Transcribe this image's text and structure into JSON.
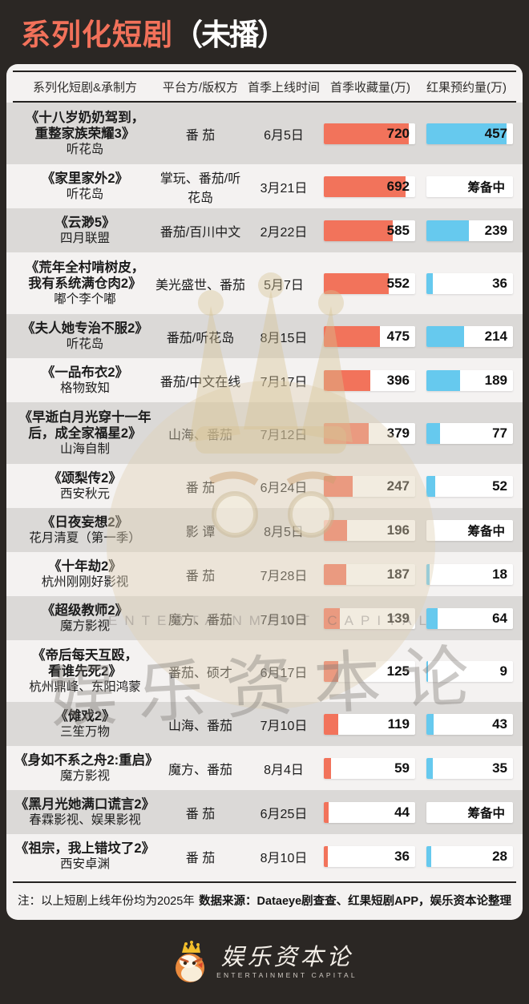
{
  "header": {
    "title_main": "系列化短剧",
    "title_suffix": "（未播）"
  },
  "table": {
    "columns": [
      "系列化短剧&承制方",
      "平台方/版权方",
      "首季上线时间",
      "首季收藏量(万)",
      "红果预约量(万)"
    ],
    "max_collection": 720,
    "max_reservation": 457,
    "pending_label": "筹备中",
    "rows": [
      {
        "title_lines": [
          "《十八岁奶奶驾到，",
          "重整家族荣耀3》"
        ],
        "producer": "听花岛",
        "platform": "番 茄",
        "date": "6月5日",
        "collection": 720,
        "reservation": 457
      },
      {
        "title_lines": [
          "《家里家外2》"
        ],
        "producer": "听花岛",
        "platform": "掌玩、番茄/听花岛",
        "date": "3月21日",
        "collection": 692,
        "reservation": "筹备中"
      },
      {
        "title_lines": [
          "《云渺5》"
        ],
        "producer": "四月联盟",
        "platform": "番茄/百川中文",
        "date": "2月22日",
        "collection": 585,
        "reservation": 239
      },
      {
        "title_lines": [
          "《荒年全村啃树皮，",
          "我有系统满仓肉2》"
        ],
        "producer": "嘟个李个嘟",
        "platform": "美光盛世、番茄",
        "date": "5月7日",
        "collection": 552,
        "reservation": 36
      },
      {
        "title_lines": [
          "《夫人她专治不服2》"
        ],
        "producer": "听花岛",
        "platform": "番茄/听花岛",
        "date": "8月15日",
        "collection": 475,
        "reservation": 214
      },
      {
        "title_lines": [
          "《一品布衣2》"
        ],
        "producer": "格物致知",
        "platform": "番茄/中文在线",
        "date": "7月17日",
        "collection": 396,
        "reservation": 189
      },
      {
        "title_lines": [
          "《早逝白月光穿十一年",
          "后，成全家福星2》"
        ],
        "producer": "山海自制",
        "platform": "山海、番茄",
        "date": "7月12日",
        "collection": 379,
        "reservation": 77
      },
      {
        "title_lines": [
          "《颂梨传2》"
        ],
        "producer": "西安秋元",
        "platform": "番 茄",
        "date": "6月24日",
        "collection": 247,
        "reservation": 52
      },
      {
        "title_lines": [
          "《日夜妄想2》"
        ],
        "producer": "花月清夏（第一季）",
        "platform": "影 谭",
        "date": "8月5日",
        "collection": 196,
        "reservation": "筹备中"
      },
      {
        "title_lines": [
          "《十年劫2》"
        ],
        "producer": "杭州刚刚好影视",
        "platform": "番 茄",
        "date": "7月28日",
        "collection": 187,
        "reservation": 18
      },
      {
        "title_lines": [
          "《超级教师2》"
        ],
        "producer": "魔方影视",
        "platform": "魔方、番茄",
        "date": "7月10日",
        "collection": 139,
        "reservation": 64
      },
      {
        "title_lines": [
          "《帝后每天互殴，",
          "看谁先死2》"
        ],
        "producer": "杭州鼎峰、东阳鸿蒙",
        "platform": "番茄、硕才",
        "date": "6月17日",
        "collection": 125,
        "reservation": 9
      },
      {
        "title_lines": [
          "《傩戏2》"
        ],
        "producer": "三笙万物",
        "platform": "山海、番茄",
        "date": "7月10日",
        "collection": 119,
        "reservation": 43
      },
      {
        "title_lines": [
          "《身如不系之舟2:重启》"
        ],
        "producer": "魔方影视",
        "platform": "魔方、番茄",
        "date": "8月4日",
        "collection": 59,
        "reservation": 35
      },
      {
        "title_lines": [
          "《黑月光她满口谎言2》"
        ],
        "producer": "春霖影视、娱果影视",
        "platform": "番 茄",
        "date": "6月25日",
        "collection": 44,
        "reservation": "筹备中"
      },
      {
        "title_lines": [
          "《祖宗，我上错坟了2》"
        ],
        "producer": "西安卓渊",
        "platform": "番 茄",
        "date": "8月10日",
        "collection": 36,
        "reservation": 28
      }
    ]
  },
  "watermark": {
    "brand": "娱乐资本论",
    "brand_en": "ENTERTAINMENT CAPITAL"
  },
  "footer": {
    "note": "注：以上短剧上线年份均为2025年",
    "source": "数据来源：Dataeye剧查查、红果短剧APP，娱乐资本论整理"
  },
  "logo": {
    "name": "娱乐资本论",
    "subtitle": "ENTERTAINMENT CAPITAL"
  },
  "colors": {
    "background": "#2b2724",
    "card": "#f4f2f1",
    "stripe": "#dbd9d7",
    "accent": "#f2715a",
    "bar_collection": "#f2735b",
    "bar_reservation": "#66c9ee"
  },
  "chart_data": {
    "type": "bar",
    "title": "系列化短剧（未播）",
    "orientation": "horizontal",
    "categories": [
      "十八岁奶奶驾到，重整家族荣耀3",
      "家里家外2",
      "云渺5",
      "荒年全村啃树皮，我有系统满仓肉2",
      "夫人她专治不服2",
      "一品布衣2",
      "早逝白月光穿十一年后，成全家福星2",
      "颂梨传2",
      "日夜妄想2",
      "十年劫2",
      "超级教师2",
      "帝后每天互殴，看谁先死2",
      "傩戏2",
      "身如不系之舟2:重启",
      "黑月光她满口谎言2",
      "祖宗，我上错坟了2"
    ],
    "series": [
      {
        "name": "首季收藏量(万)",
        "color": "#f2735b",
        "values": [
          720,
          692,
          585,
          552,
          475,
          396,
          379,
          247,
          196,
          187,
          139,
          125,
          119,
          59,
          44,
          36
        ]
      },
      {
        "name": "红果预约量(万)",
        "color": "#66c9ee",
        "values": [
          457,
          "筹备中",
          239,
          36,
          214,
          189,
          77,
          52,
          "筹备中",
          18,
          64,
          9,
          43,
          35,
          "筹备中",
          28
        ]
      }
    ],
    "xlim": [
      0,
      720
    ],
    "grid": false,
    "legend_position": "column-headers",
    "annotations": [
      "注：以上短剧上线年份均为2025年",
      "数据来源：Dataeye剧查查、红果短剧APP，娱乐资本论整理"
    ]
  }
}
